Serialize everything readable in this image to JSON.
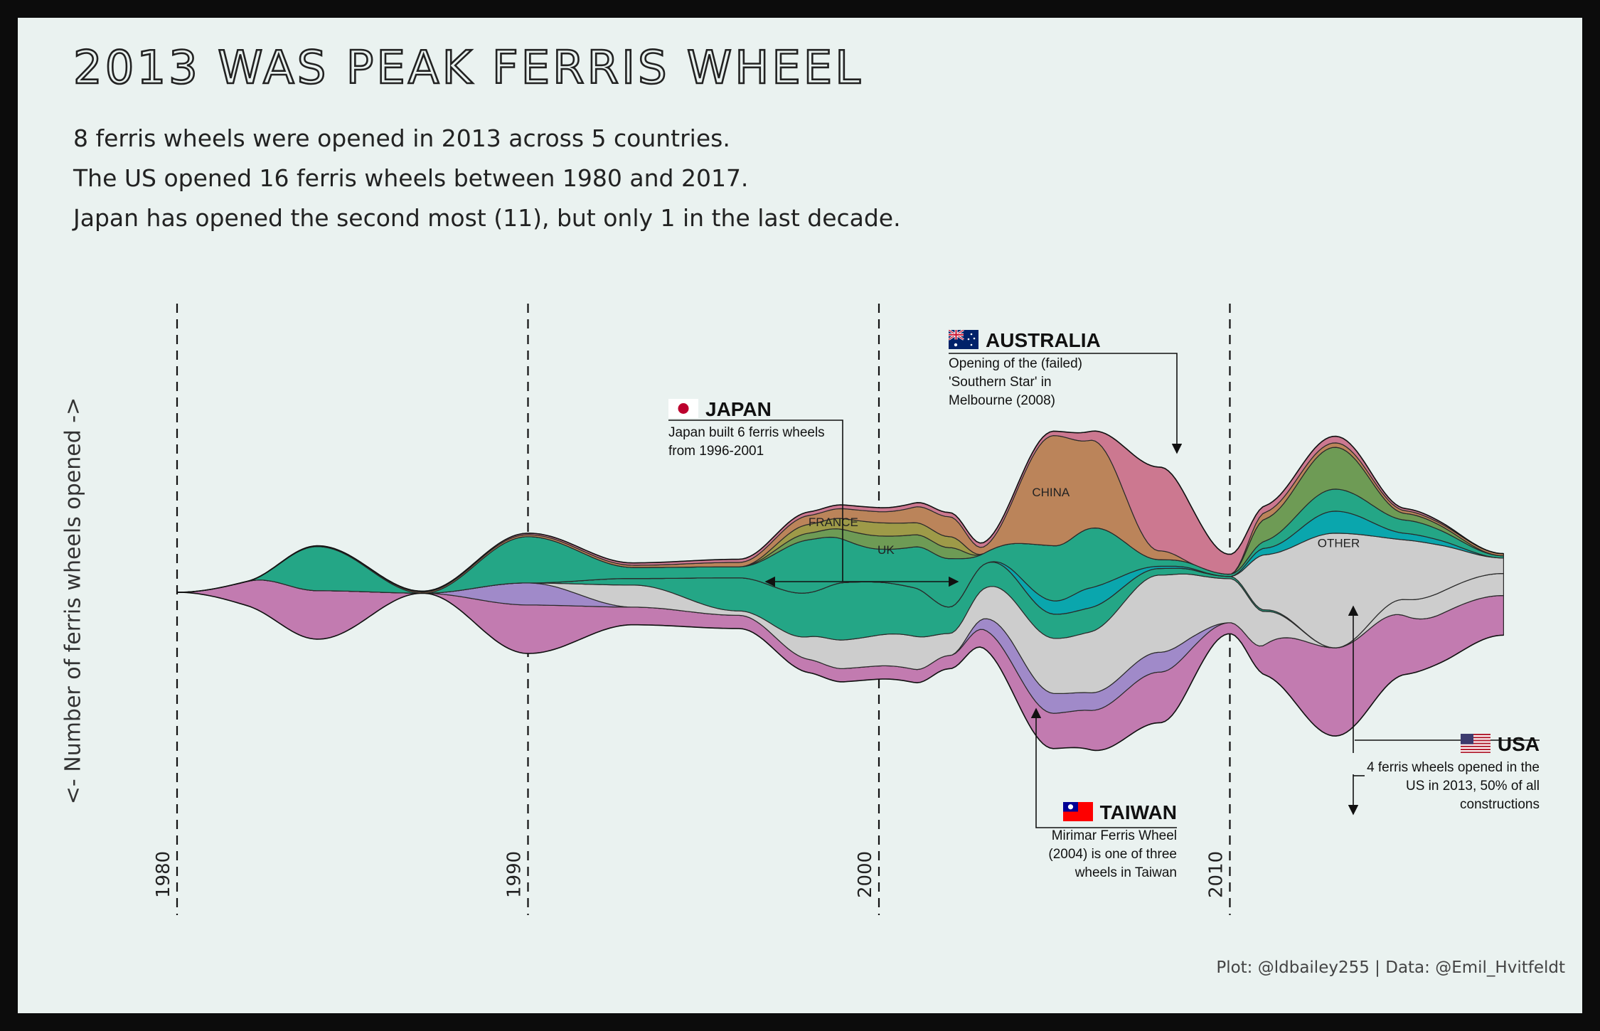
{
  "header": {
    "title": "2013 WAS PEAK FERRIS WHEEL",
    "subtitle_lines": [
      "8 ferris wheels were opened in 2013 across 5 countries.",
      "The US opened 16 ferris wheels between 1980 and 2017.",
      "Japan has opened the second most (11), but only 1 in the last decade."
    ]
  },
  "credit": "Plot: @ldbailey255 | Data: @Emil_Hvitfeldt",
  "annotations": {
    "japan": {
      "heading": "JAPAN",
      "body": "Japan built 6 ferris wheels from 1996-2001"
    },
    "australia": {
      "heading": "AUSTRALIA",
      "body": "Opening of the (failed) 'Southern Star' in Melbourne (2008)"
    },
    "taiwan": {
      "heading": "TAIWAN",
      "body": "Mirimar Ferris Wheel (2004) is one of three wheels in Taiwan"
    },
    "usa": {
      "heading": "USA",
      "body": "4 ferris wheels opened in the US in 2013, 50% of all constructions"
    }
  },
  "chart_data": {
    "type": "area",
    "variant": "streamgraph",
    "ylabel": "<- Number of ferris wheels opened ->",
    "xlabel": "",
    "x_ticks": [
      "1980",
      "1990",
      "2000",
      "2010"
    ],
    "xlim": [
      1980,
      2017.8
    ],
    "grid": "dashed vertical lines at decades",
    "series": [
      {
        "name": "USA",
        "color": "#c27bb0",
        "stack_side": "bottom",
        "x": [
          1980,
          1984,
          1987,
          1990,
          1993,
          1996,
          1999,
          2002,
          2005,
          2008,
          2010,
          2013,
          2016,
          2017.8
        ],
        "values": [
          0,
          2.2,
          0,
          2.2,
          0.8,
          0.6,
          0.6,
          0.6,
          1.6,
          2.3,
          0.5,
          4,
          2.2,
          1.8
        ]
      },
      {
        "name": "Taiwan",
        "color": "#a08ac9",
        "stack_side": "bottom",
        "x": [
          1980,
          1987,
          1990,
          1993,
          1999,
          2002,
          2004,
          2006,
          2008,
          2010,
          2013,
          2017.8
        ],
        "values": [
          0,
          0,
          1,
          0,
          0,
          0,
          1,
          0.8,
          0.9,
          0,
          0,
          0
        ]
      },
      {
        "name": "Other",
        "color": "#cdcdcd",
        "stack_side": "bottom",
        "x": [
          1980,
          1984,
          1987,
          1990,
          1993,
          1996,
          1999,
          2001,
          2002,
          2005,
          2008,
          2010,
          2013,
          2016,
          2017.8
        ],
        "values": [
          0,
          0,
          0,
          0,
          1,
          0.2,
          1.3,
          1.5,
          1,
          2.5,
          3.5,
          2,
          0,
          1,
          1
        ]
      },
      {
        "name": "Japan",
        "color": "#24a686",
        "stack_side": "bottom",
        "x": [
          1980,
          1984,
          1987,
          1990,
          1993,
          1996,
          1998,
          1999,
          2001,
          2002,
          2003,
          2005,
          2006,
          2008,
          2010,
          2013,
          2017.8
        ],
        "values": [
          0,
          0,
          0,
          0,
          0.3,
          1.5,
          2,
          2.6,
          2.2,
          1.2,
          1.1,
          1.1,
          1.1,
          0.3,
          0.1,
          0,
          0
        ]
      },
      {
        "name": "Other",
        "color": "#cdcdcd",
        "stack_side": "top",
        "x": [
          1980,
          2007,
          2008,
          2009,
          2010,
          2011,
          2013,
          2015,
          2017.8
        ],
        "values": [
          0,
          0,
          0,
          0,
          0,
          2.5,
          5.2,
          2.7,
          0.7
        ]
      },
      {
        "name": "Other",
        "color": "#0aa6ad",
        "stack_side": "top",
        "x": [
          1980,
          2003,
          2005,
          2006,
          2008,
          2010,
          2011,
          2013,
          2015,
          2017.8
        ],
        "values": [
          0,
          0,
          0.6,
          0.9,
          0.1,
          0,
          0.3,
          1,
          0.3,
          0
        ]
      },
      {
        "name": "Japan",
        "color": "#24a686",
        "stack_side": "top",
        "x": [
          1980,
          1982,
          1984,
          1987,
          1990,
          1993,
          1996,
          1998,
          2000,
          2002,
          2003,
          2005,
          2006,
          2008,
          2010,
          2013,
          2015,
          2017.8
        ],
        "values": [
          0,
          0,
          2,
          0,
          2.1,
          0.5,
          0.5,
          2.4,
          1.5,
          2.2,
          0.5,
          2.5,
          2.7,
          0.3,
          0.1,
          1,
          0.6,
          0.1
        ]
      },
      {
        "name": "UK",
        "color": "#6e9b55",
        "stack_side": "top",
        "x": [
          1980,
          1996,
          1998,
          2000,
          2002,
          2003,
          2008,
          2010,
          2011,
          2013,
          2015,
          2017.8
        ],
        "values": [
          0,
          0,
          0.3,
          0.6,
          0.5,
          0,
          0,
          0,
          1,
          1.9,
          0.3,
          0
        ]
      },
      {
        "name": "France",
        "color": "#9e9a48",
        "stack_side": "top",
        "x": [
          1980,
          1996,
          1998,
          2000,
          2002,
          2003,
          2017.8
        ],
        "values": [
          0,
          0,
          0.4,
          0.6,
          0.5,
          0,
          0
        ]
      },
      {
        "name": "China",
        "color": "#bb845a",
        "stack_side": "top",
        "x": [
          1980,
          1993,
          1996,
          1998,
          2000,
          2002,
          2003,
          2005,
          2006,
          2008,
          2009,
          2010,
          2011,
          2013,
          2016,
          2017.8
        ],
        "values": [
          0,
          0.1,
          0.2,
          0.4,
          0.5,
          0.9,
          0.3,
          5,
          4,
          0.4,
          0,
          0,
          0.3,
          0.2,
          0.1,
          0.1
        ]
      },
      {
        "name": "Australia",
        "color": "#cc7890",
        "stack_side": "top",
        "x": [
          1980,
          2005,
          2006,
          2008,
          2010,
          2011,
          2013,
          2015,
          2017.8
        ],
        "values": [
          0,
          0.2,
          0.4,
          3.8,
          0.9,
          0.3,
          0.3,
          0.1,
          0
        ]
      }
    ],
    "layer_labels": [
      "FRANCE",
      "UK",
      "CHINA",
      "OTHER"
    ]
  }
}
